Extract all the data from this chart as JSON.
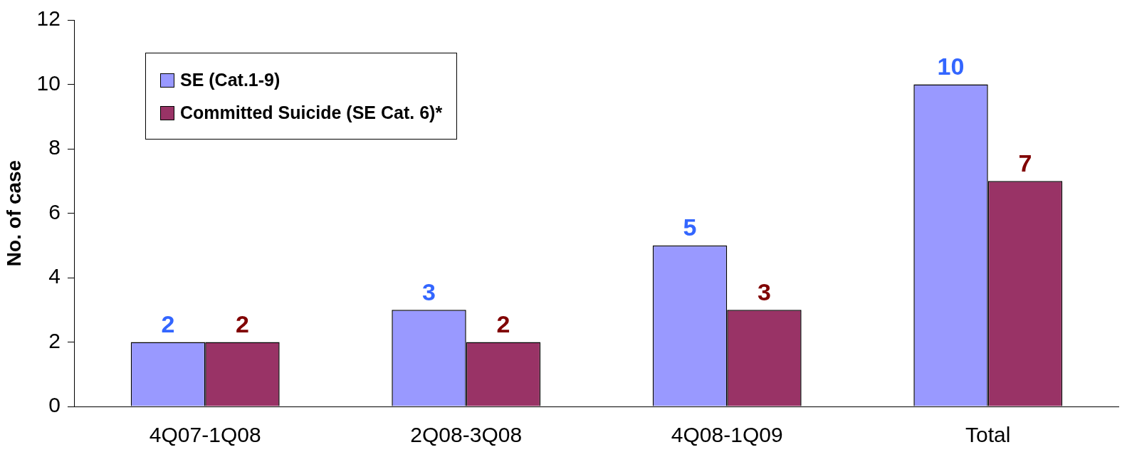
{
  "chart_data": {
    "type": "bar",
    "ylabel": "No. of case",
    "categories": [
      "4Q07-1Q08",
      "2Q08-3Q08",
      "4Q08-1Q09",
      "Total"
    ],
    "series": [
      {
        "name": "SE (Cat.1-9)",
        "color": "#9999ff",
        "values": [
          2,
          3,
          5,
          10
        ]
      },
      {
        "name": "Committed Suicide (SE Cat. 6)*",
        "color": "#993366",
        "values": [
          2,
          2,
          3,
          7
        ]
      }
    ],
    "ylim": [
      0,
      12
    ],
    "yticks": [
      0,
      2,
      4,
      6,
      8,
      10,
      12
    ],
    "grid": false,
    "legend": "top left",
    "data_labels": true
  }
}
